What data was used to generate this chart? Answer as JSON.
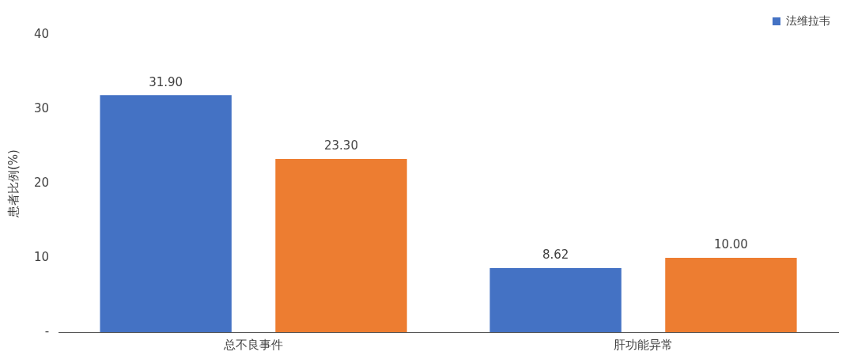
{
  "chart_data": {
    "type": "bar",
    "ylabel": "患者比例(%)",
    "categories": [
      "总不良事件",
      "肝功能异常"
    ],
    "series": [
      {
        "name": "法维拉韦",
        "color": "#4472c4",
        "values": [
          31.9,
          8.62
        ],
        "value_labels": [
          "31.90",
          "8.62"
        ]
      },
      {
        "color": "#ed7d31",
        "values": [
          23.3,
          10.0
        ],
        "value_labels": [
          "23.30",
          "10.00"
        ]
      }
    ],
    "ylim": [
      0,
      40
    ],
    "yticks": [
      {
        "value": 0,
        "label": "-"
      },
      10,
      20,
      30,
      40
    ],
    "grid": false,
    "legend": "top right"
  }
}
